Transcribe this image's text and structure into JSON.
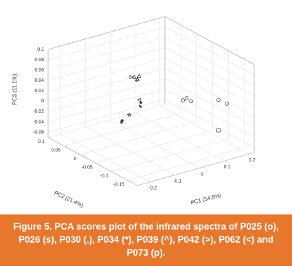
{
  "chart_data": {
    "type": "scatter3d",
    "xlabel": "PC1 (54.8%)",
    "ylabel": "PC2 (21.4%)",
    "zlabel": "PC3 (11.1%)",
    "caption": "Figure 5. PCA scores plot of the infrared spectra of P025 (o), P026 (s), P030 (.), P034 (*), P039 (^), P042 (>), P062 (<) and P073 (p).",
    "xlim": [
      -0.25,
      0.22
    ],
    "ylim": [
      -0.18,
      0.1
    ],
    "zlim": [
      -0.07,
      0.1
    ],
    "xticks": [
      -0.2,
      -0.1,
      0,
      0.1,
      0.2
    ],
    "yticks": [
      -0.15,
      -0.1,
      -0.05,
      0,
      0.05,
      0.1
    ],
    "zticks": [
      -0.06,
      -0.04,
      -0.02,
      0,
      0.02,
      0.04,
      0.06,
      0.08,
      0.1
    ],
    "grid": true,
    "series": [
      {
        "marker": "o",
        "color": "#222222",
        "x": [
          0.1,
          0.115,
          0.12,
          0.179,
          0.2,
          -0.022
        ],
        "y": [
          -0.05,
          -0.05,
          -0.06,
          -0.1,
          -0.11,
          0
        ],
        "z": [
          0.004,
          0.006,
          0.003,
          0.011,
          0.004,
          0.044
        ]
      },
      {
        "marker": "s",
        "color": "#222222",
        "x": [
          0.179
        ],
        "y": [
          -0.1
        ],
        "z": [
          -0.048
        ]
      },
      {
        "marker": ".",
        "color": "#222222",
        "x": [
          -0.01,
          -0.002
        ],
        "y": [
          0,
          0.002
        ],
        "z": [
          -0.008,
          -0.012
        ]
      },
      {
        "marker": "*",
        "color": "#222222",
        "x": [
          -0.08,
          -0.083,
          -0.005
        ],
        "y": [
          0,
          0,
          0
        ],
        "z": [
          -0.027,
          -0.03,
          -0.003
        ]
      },
      {
        "marker": "^",
        "color": "#222222",
        "x": [
          -0.019,
          -0.012,
          -0.025
        ],
        "y": [
          0,
          0,
          0.005
        ],
        "z": [
          0.045,
          0.05,
          0.048
        ]
      },
      {
        "marker": ">",
        "color": "#222222",
        "x": [
          -0.03
        ],
        "y": [
          0.01
        ],
        "z": [
          0.047
        ]
      },
      {
        "marker": "<",
        "color": "#222222",
        "x": [
          -0.008
        ],
        "y": [
          0.003
        ],
        "z": [
          0.002
        ]
      },
      {
        "marker": "p",
        "color": "#222222",
        "x": [
          -0.052
        ],
        "y": [
          0
        ],
        "z": [
          -0.02
        ]
      }
    ]
  }
}
